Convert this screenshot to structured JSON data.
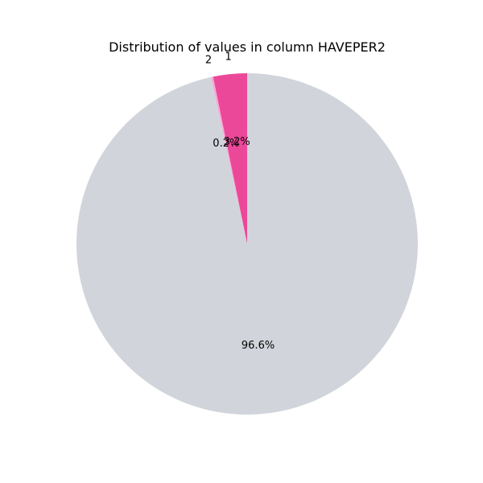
{
  "chart_data": {
    "type": "pie",
    "title": "Distribution of values in column HAVEPER2",
    "slices": [
      {
        "label": "1",
        "value": 3.2,
        "pct_label": "3.2%",
        "color": "#ec4899"
      },
      {
        "label": "2",
        "value": 0.2,
        "pct_label": "0.2%",
        "color": "#f9a8d4"
      },
      {
        "label": "",
        "value": 96.6,
        "pct_label": "96.6%",
        "color": "#d1d5db"
      }
    ],
    "start_angle_deg": 90,
    "direction": "counterclockwise",
    "legend": "none"
  }
}
